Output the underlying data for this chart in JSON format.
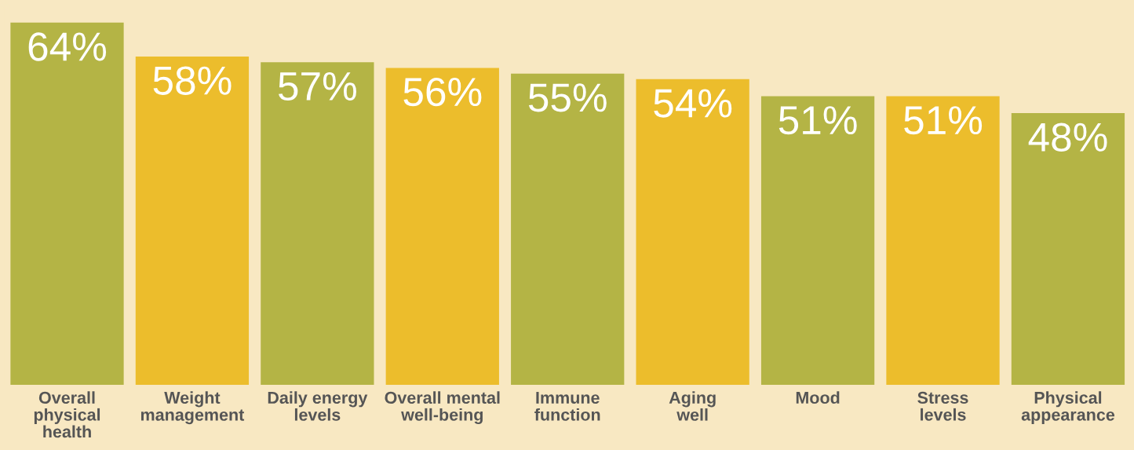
{
  "chart_data": {
    "type": "bar",
    "categories": [
      "Overall\nphysical\nhealth",
      "Weight\nmanagement",
      "Daily energy\nlevels",
      "Overall mental\nwell-being",
      "Immune\nfunction",
      "Aging\nwell",
      "Mood",
      "Stress\nlevels",
      "Physical\nappearance"
    ],
    "values": [
      64,
      58,
      57,
      56,
      55,
      54,
      51,
      51,
      48
    ],
    "colors": [
      "#b4b445",
      "#ecbd2c",
      "#b4b445",
      "#ecbd2c",
      "#b4b445",
      "#ecbd2c",
      "#b4b445",
      "#ecbd2c",
      "#b4b445"
    ],
    "value_labels": [
      "64%",
      "58%",
      "57%",
      "56%",
      "55%",
      "54%",
      "51%",
      "51%",
      "48%"
    ],
    "grid": false,
    "legend": false
  }
}
